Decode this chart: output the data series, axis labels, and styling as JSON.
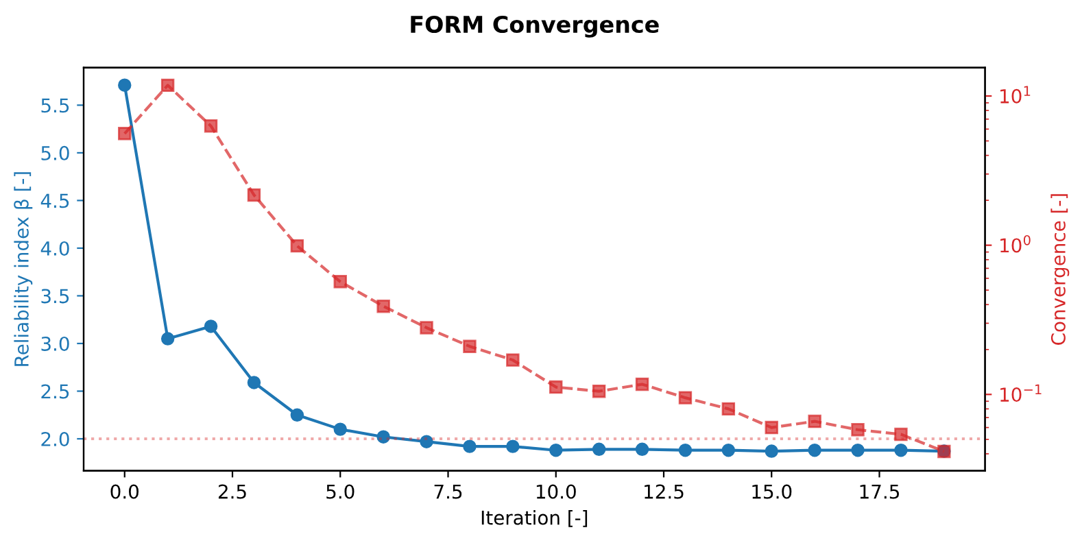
{
  "chart_data": {
    "type": "line",
    "title": "FORM Convergence",
    "xlabel": "Iteration [-]",
    "ylabel": "Reliability index β [-]",
    "y2label": "Convergence [-]",
    "x": [
      0,
      1,
      2,
      3,
      4,
      5,
      6,
      7,
      8,
      9,
      10,
      11,
      12,
      13,
      14,
      15,
      16,
      17,
      18,
      19
    ],
    "series": [
      {
        "color": "#1f77b4",
        "marker": "circle",
        "line_style": "solid",
        "values": [
          5.71,
          3.05,
          3.18,
          2.59,
          2.25,
          2.1,
          2.02,
          1.97,
          1.92,
          1.92,
          1.88,
          1.89,
          1.89,
          1.88,
          1.88,
          1.87,
          1.88,
          1.88,
          1.88,
          1.87
        ]
      },
      {
        "color": "#d62728",
        "marker": "square",
        "line_style": "dashed",
        "axis": "y2",
        "values": [
          5.6,
          11.8,
          6.3,
          2.17,
          0.99,
          0.57,
          0.39,
          0.28,
          0.21,
          0.17,
          0.112,
          0.105,
          0.117,
          0.095,
          0.08,
          0.06,
          0.066,
          0.058,
          0.054,
          0.0415
        ]
      }
    ],
    "xlim": [
      -0.95,
      19.95
    ],
    "xticks": [
      {
        "value": 0,
        "label": "0.0"
      },
      {
        "value": 2.5,
        "label": "2.5"
      },
      {
        "value": 5,
        "label": "5.0"
      },
      {
        "value": 7.5,
        "label": "7.5"
      },
      {
        "value": 10,
        "label": "10.0"
      },
      {
        "value": 12.5,
        "label": "12.5"
      },
      {
        "value": 15,
        "label": "15.0"
      },
      {
        "value": 17.5,
        "label": "17.5"
      }
    ],
    "ylim": [
      1.665,
      5.894
    ],
    "yticks": [
      {
        "value": 2,
        "label": "2.0"
      },
      {
        "value": 2.5,
        "label": "2.5"
      },
      {
        "value": 3,
        "label": "3.0"
      },
      {
        "value": 3.5,
        "label": "3.5"
      },
      {
        "value": 4,
        "label": "4.0"
      },
      {
        "value": 4.5,
        "label": "4.5"
      },
      {
        "value": 5,
        "label": "5.0"
      },
      {
        "value": 5.5,
        "label": "5.5"
      }
    ],
    "log": "y2",
    "y2lim": [
      0.0308,
      15.5
    ],
    "y2ticks": [
      {
        "value": 0.1,
        "label": "10$^{−1}$"
      },
      {
        "value": 1,
        "label": "10$^{0}$"
      },
      {
        "value": 10,
        "label": "10$^{1}$"
      }
    ],
    "ref_lines": [
      {
        "axis": "y",
        "value": 2.0,
        "color": "#d62728",
        "line_style": "dotted"
      }
    ],
    "grid": false,
    "legend": false
  }
}
